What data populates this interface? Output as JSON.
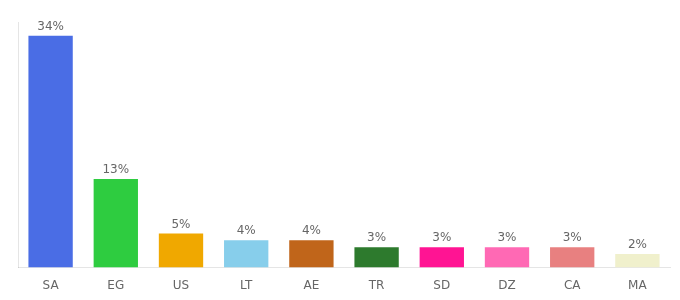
{
  "chart_data": {
    "type": "bar",
    "categories": [
      "SA",
      "EG",
      "US",
      "LT",
      "AE",
      "TR",
      "SD",
      "DZ",
      "CA",
      "MA"
    ],
    "values": [
      34,
      13,
      5,
      4,
      4,
      3,
      3,
      3,
      3,
      2
    ],
    "value_labels": [
      "34%",
      "13%",
      "5%",
      "4%",
      "4%",
      "3%",
      "3%",
      "3%",
      "3%",
      "2%"
    ],
    "colors": [
      "#4a6de5",
      "#2ecc40",
      "#f0a800",
      "#87ceeb",
      "#c0651a",
      "#2d7a2d",
      "#ff1493",
      "#ff69b4",
      "#e88080",
      "#f0f0cc"
    ],
    "ylim": [
      0,
      36
    ],
    "data_labels": true,
    "tick_labels": "x",
    "grid": false
  }
}
